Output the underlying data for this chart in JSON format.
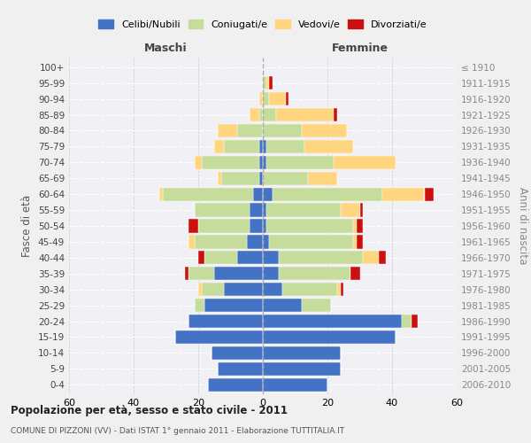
{
  "age_groups": [
    "0-4",
    "5-9",
    "10-14",
    "15-19",
    "20-24",
    "25-29",
    "30-34",
    "35-39",
    "40-44",
    "45-49",
    "50-54",
    "55-59",
    "60-64",
    "65-69",
    "70-74",
    "75-79",
    "80-84",
    "85-89",
    "90-94",
    "95-99",
    "100+"
  ],
  "birth_years": [
    "2006-2010",
    "2001-2005",
    "1996-2000",
    "1991-1995",
    "1986-1990",
    "1981-1985",
    "1976-1980",
    "1971-1975",
    "1966-1970",
    "1961-1965",
    "1956-1960",
    "1951-1955",
    "1946-1950",
    "1941-1945",
    "1936-1940",
    "1931-1935",
    "1926-1930",
    "1921-1925",
    "1916-1920",
    "1911-1915",
    "≤ 1910"
  ],
  "maschi": {
    "celibi": [
      17,
      14,
      16,
      27,
      23,
      18,
      12,
      15,
      8,
      5,
      4,
      4,
      3,
      1,
      1,
      1,
      0,
      0,
      0,
      0,
      0
    ],
    "coniugati": [
      0,
      0,
      0,
      0,
      0,
      3,
      7,
      8,
      10,
      16,
      16,
      17,
      28,
      12,
      18,
      11,
      8,
      1,
      0,
      0,
      0
    ],
    "vedovi": [
      0,
      0,
      0,
      0,
      0,
      0,
      1,
      0,
      0,
      2,
      0,
      0,
      1,
      1,
      2,
      3,
      6,
      3,
      1,
      0,
      0
    ],
    "divorziati": [
      0,
      0,
      0,
      0,
      0,
      0,
      0,
      1,
      2,
      0,
      3,
      0,
      0,
      0,
      0,
      0,
      0,
      0,
      0,
      0,
      0
    ]
  },
  "femmine": {
    "celibi": [
      20,
      24,
      24,
      41,
      43,
      12,
      6,
      5,
      5,
      2,
      1,
      1,
      3,
      0,
      1,
      1,
      0,
      0,
      0,
      0,
      0
    ],
    "coniugati": [
      0,
      0,
      0,
      0,
      3,
      9,
      17,
      22,
      26,
      26,
      27,
      23,
      34,
      14,
      21,
      12,
      12,
      4,
      2,
      1,
      0
    ],
    "vedovi": [
      0,
      0,
      0,
      0,
      0,
      0,
      1,
      0,
      5,
      1,
      1,
      6,
      13,
      9,
      19,
      15,
      14,
      18,
      5,
      1,
      0
    ],
    "divorziati": [
      0,
      0,
      0,
      0,
      2,
      0,
      1,
      3,
      2,
      2,
      2,
      1,
      3,
      0,
      0,
      0,
      0,
      1,
      1,
      1,
      0
    ]
  },
  "colors": {
    "celibi": "#4472C4",
    "coniugati": "#C5DC9A",
    "vedovi": "#FFD580",
    "divorziati": "#CC1010"
  },
  "xlim": 60,
  "title": "Popolazione per età, sesso e stato civile - 2011",
  "subtitle": "COMUNE DI PIZZONI (VV) - Dati ISTAT 1° gennaio 2011 - Elaborazione TUTTITALIA.IT",
  "ylabel_left": "Fasce di età",
  "ylabel_right": "Anni di nascita",
  "xlabel_left": "Maschi",
  "xlabel_right": "Femmine",
  "legend_labels": [
    "Celibi/Nubili",
    "Coniugati/e",
    "Vedovi/e",
    "Divorziati/e"
  ],
  "bg_color": "#f0f0f0",
  "plot_bg": "#f0f0f5"
}
